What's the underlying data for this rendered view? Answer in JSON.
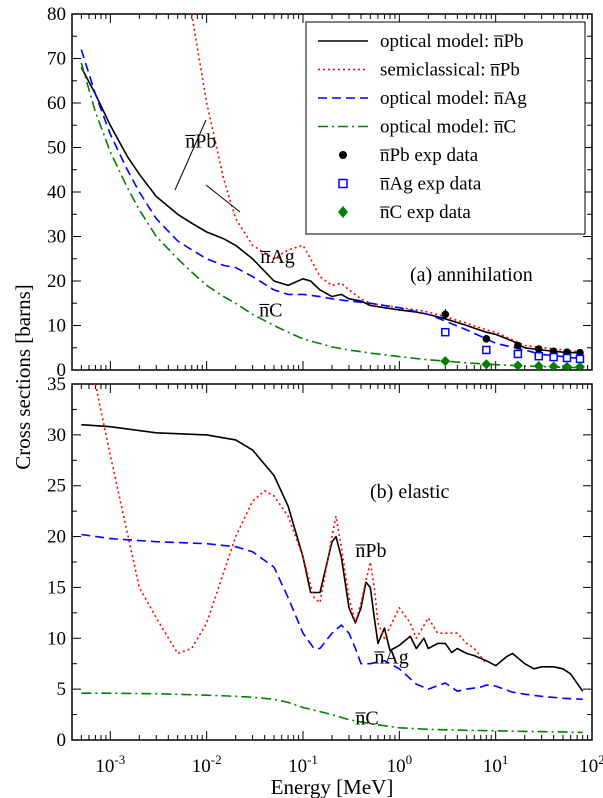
{
  "chart_data": [
    {
      "type": "line",
      "panel_label": "(a) annihilation",
      "xlabel": "Energy [MeV]",
      "ylabel": "Cross sections [barns]",
      "xscale": "log",
      "xlim": [
        0.0004,
        100
      ],
      "ylim": [
        0,
        80
      ],
      "y_ticks": [
        "0",
        "10",
        "20",
        "30",
        "40",
        "50",
        "60",
        "70",
        "80"
      ],
      "legend_position": "top-right",
      "legend": [
        "optical model: n̅Pb",
        "semiclassical:  n̅Pb",
        "optical model: n̅Ag",
        "optical model: n̅C",
        "n̅Pb exp data",
        "n̅Ag exp data",
        "n̅C   exp data"
      ],
      "annotations": [
        {
          "text": "n̅Pb",
          "x": 0.006,
          "y": 50
        },
        {
          "text": "n̅Ag",
          "x": 0.036,
          "y": 24
        },
        {
          "text": "n̅C",
          "x": 0.035,
          "y": 12
        }
      ],
      "series": [
        {
          "name": "optical model: n̅Pb",
          "color": "#000000",
          "style": "solid",
          "x": [
            0.0005,
            0.0007,
            0.001,
            0.0015,
            0.002,
            0.003,
            0.005,
            0.007,
            0.01,
            0.015,
            0.02,
            0.03,
            0.05,
            0.07,
            0.1,
            0.12,
            0.15,
            0.2,
            0.25,
            0.3,
            0.4,
            0.5,
            0.7,
            1,
            1.5,
            2,
            3,
            5,
            8,
            10,
            15,
            20,
            30,
            50,
            80
          ],
          "y": [
            68,
            62,
            55,
            48,
            44,
            39,
            35,
            33,
            31,
            29.5,
            28,
            25,
            20,
            19,
            20.5,
            20,
            18,
            16.5,
            17,
            16,
            15.5,
            14.5,
            14,
            13.5,
            13,
            12.5,
            11.5,
            10,
            8.5,
            8,
            6.5,
            5,
            4.5,
            4,
            3.8
          ]
        },
        {
          "name": "semiclassical:  n̅Pb",
          "color": "#ff0000",
          "style": "dotted",
          "x": [
            0.007,
            0.01,
            0.015,
            0.02,
            0.03,
            0.05,
            0.07,
            0.1,
            0.12,
            0.15,
            0.2,
            0.25,
            0.3,
            0.4,
            0.5,
            0.7,
            1,
            1.5,
            2,
            3,
            5,
            8,
            10,
            20,
            50,
            80
          ],
          "y": [
            80,
            60,
            43,
            34,
            28,
            25,
            27,
            28,
            25,
            21,
            19,
            19.5,
            18,
            16,
            15,
            14.5,
            14,
            13.5,
            13,
            12,
            10.5,
            9,
            8.5,
            5.5,
            4.5,
            4
          ]
        },
        {
          "name": "optical model: n̅Ag",
          "color": "#0000ff",
          "style": "dashed",
          "x": [
            0.0005,
            0.0007,
            0.001,
            0.0015,
            0.002,
            0.003,
            0.005,
            0.007,
            0.01,
            0.015,
            0.02,
            0.03,
            0.05,
            0.07,
            0.1,
            0.15,
            0.2,
            0.3,
            0.5,
            0.7,
            1,
            2,
            3,
            5,
            8,
            10,
            20,
            30,
            50,
            80
          ],
          "y": [
            72,
            62,
            53,
            45,
            40,
            34,
            29,
            27,
            25,
            23.5,
            23,
            21,
            18,
            17,
            17,
            16.5,
            16,
            15.5,
            15,
            14.5,
            14,
            12.5,
            11,
            9,
            7,
            6,
            4.5,
            3.5,
            3,
            2.5
          ]
        },
        {
          "name": "optical model: n̅C",
          "color": "#008000",
          "style": "dashdot",
          "x": [
            0.0005,
            0.0007,
            0.001,
            0.0015,
            0.002,
            0.003,
            0.005,
            0.007,
            0.01,
            0.015,
            0.02,
            0.03,
            0.05,
            0.07,
            0.1,
            0.2,
            0.3,
            0.5,
            1,
            2,
            3,
            5,
            10,
            20,
            50,
            80
          ],
          "y": [
            69,
            58,
            49,
            41,
            36,
            30,
            25,
            22,
            19,
            16.5,
            15,
            12.5,
            10,
            8.5,
            7,
            5.2,
            4.5,
            3.8,
            3,
            2.3,
            2,
            1.6,
            1.2,
            0.9,
            0.6,
            0.5
          ]
        },
        {
          "name": "n̅Pb exp data",
          "color": "#000000",
          "style": "circle",
          "x": [
            3,
            8,
            17,
            28,
            40,
            55,
            75
          ],
          "y": [
            12.5,
            7,
            5.5,
            4.7,
            4.2,
            4,
            3.9
          ],
          "err": [
            1.2,
            0.6,
            0.4,
            0.3,
            0.3,
            0.3,
            0.3
          ]
        },
        {
          "name": "n̅Ag exp data",
          "color": "#0000ff",
          "style": "square",
          "x": [
            3,
            8,
            17,
            28,
            40,
            55,
            75
          ],
          "y": [
            8.5,
            4.5,
            3.6,
            3.1,
            2.9,
            2.7,
            2.5
          ],
          "err": [
            0.8,
            0.5,
            0.3,
            0.3,
            0.2,
            0.2,
            0.2
          ]
        },
        {
          "name": "n̅C   exp data",
          "color": "#008000",
          "style": "diamond",
          "x": [
            3,
            8,
            17,
            28,
            40,
            55,
            75
          ],
          "y": [
            2,
            1.3,
            1,
            0.9,
            0.8,
            0.7,
            0.7
          ],
          "err": [
            0.3,
            0.2,
            0.15,
            0.1,
            0.1,
            0.1,
            0.1
          ]
        }
      ]
    },
    {
      "type": "line",
      "panel_label": "(b) elastic",
      "xlabel": "Energy [MeV]",
      "ylabel": "Cross sections [barns]",
      "xscale": "log",
      "xlim": [
        0.0004,
        100
      ],
      "ylim": [
        0,
        35
      ],
      "x_ticks": [
        {
          "base": "10",
          "exp": "-3"
        },
        {
          "base": "10",
          "exp": "-2"
        },
        {
          "base": "10",
          "exp": "-1"
        },
        {
          "base": "10",
          "exp": "0"
        },
        {
          "base": "10",
          "exp": "1"
        },
        {
          "base": "10",
          "exp": "2"
        }
      ],
      "y_ticks": [
        "0",
        "5",
        "10",
        "15",
        "20",
        "25",
        "30",
        "35"
      ],
      "annotations": [
        {
          "text": "n̅Pb",
          "x": 0.35,
          "y": 18
        },
        {
          "text": "n̅Ag",
          "x": 0.55,
          "y": 7.5
        },
        {
          "text": "n̅C",
          "x": 0.35,
          "y": 1.5
        }
      ],
      "series": [
        {
          "name": "optical model: n̅Pb",
          "color": "#000000",
          "style": "solid",
          "x": [
            0.0005,
            0.001,
            0.003,
            0.01,
            0.02,
            0.03,
            0.05,
            0.07,
            0.1,
            0.12,
            0.15,
            0.2,
            0.22,
            0.25,
            0.3,
            0.35,
            0.4,
            0.45,
            0.5,
            0.55,
            0.6,
            0.7,
            0.8,
            1,
            1.3,
            1.5,
            1.8,
            2,
            2.5,
            3,
            3.5,
            4,
            5,
            6,
            8,
            10,
            13,
            15,
            20,
            25,
            30,
            40,
            50,
            60,
            80
          ],
          "y": [
            31,
            30.8,
            30.2,
            30,
            29.5,
            28.5,
            26,
            23,
            18,
            14.5,
            14.5,
            19.5,
            20,
            18,
            13,
            11.5,
            13,
            15.5,
            15,
            12,
            9.5,
            11,
            8.8,
            9.3,
            10.2,
            9,
            10,
            9,
            9.5,
            9.5,
            8.6,
            9,
            8.5,
            8.3,
            7.8,
            7.3,
            8.2,
            8.5,
            7.5,
            7,
            7.2,
            7.2,
            7,
            6.5,
            4.8
          ]
        },
        {
          "name": "semiclassical:  n̅Pb",
          "color": "#ff0000",
          "style": "dotted",
          "x": [
            0.0007,
            0.001,
            0.002,
            0.003,
            0.005,
            0.007,
            0.01,
            0.02,
            0.03,
            0.04,
            0.05,
            0.07,
            0.1,
            0.13,
            0.15,
            0.2,
            0.22,
            0.25,
            0.3,
            0.35,
            0.4,
            0.5,
            0.55,
            0.6,
            0.7,
            1,
            1.3,
            1.5,
            2,
            2.5,
            3,
            4,
            5,
            6,
            8
          ],
          "y": [
            35,
            28,
            15,
            12,
            8.5,
            9,
            11.5,
            20,
            23.5,
            24.5,
            24,
            22,
            18,
            14,
            13.5,
            20,
            22,
            19,
            14,
            11.5,
            13.5,
            17.5,
            15,
            11.5,
            10,
            13,
            11.5,
            10,
            12,
            10.5,
            10.5,
            10.5,
            9.5,
            9,
            7.5
          ]
        },
        {
          "name": "optical model: n̅Ag",
          "color": "#0000ff",
          "style": "dashed",
          "x": [
            0.0005,
            0.001,
            0.003,
            0.01,
            0.02,
            0.03,
            0.05,
            0.07,
            0.1,
            0.13,
            0.15,
            0.2,
            0.25,
            0.3,
            0.35,
            0.4,
            0.5,
            0.7,
            1,
            1.5,
            2,
            3,
            4,
            5,
            7,
            8,
            10,
            15,
            20,
            30,
            50,
            80
          ],
          "y": [
            20.2,
            19.8,
            19.5,
            19.3,
            19,
            18.5,
            17,
            14,
            10.5,
            9,
            9,
            10.5,
            11.3,
            10.5,
            9,
            7.5,
            7.5,
            7.8,
            7,
            5.5,
            5,
            5.6,
            4.8,
            5,
            5.2,
            5.4,
            5.3,
            4.7,
            4.5,
            4.3,
            4.1,
            4
          ]
        },
        {
          "name": "optical model: n̅C",
          "color": "#008000",
          "style": "dashdot",
          "x": [
            0.0005,
            0.001,
            0.003,
            0.01,
            0.02,
            0.03,
            0.05,
            0.07,
            0.1,
            0.2,
            0.3,
            0.5,
            1,
            2,
            3,
            5,
            10,
            20,
            50,
            80
          ],
          "y": [
            4.6,
            4.6,
            4.55,
            4.4,
            4.3,
            4.2,
            4,
            3.7,
            3.2,
            2.5,
            2,
            1.6,
            1.2,
            1.05,
            1,
            0.95,
            0.9,
            0.85,
            0.8,
            0.75
          ]
        }
      ]
    }
  ]
}
